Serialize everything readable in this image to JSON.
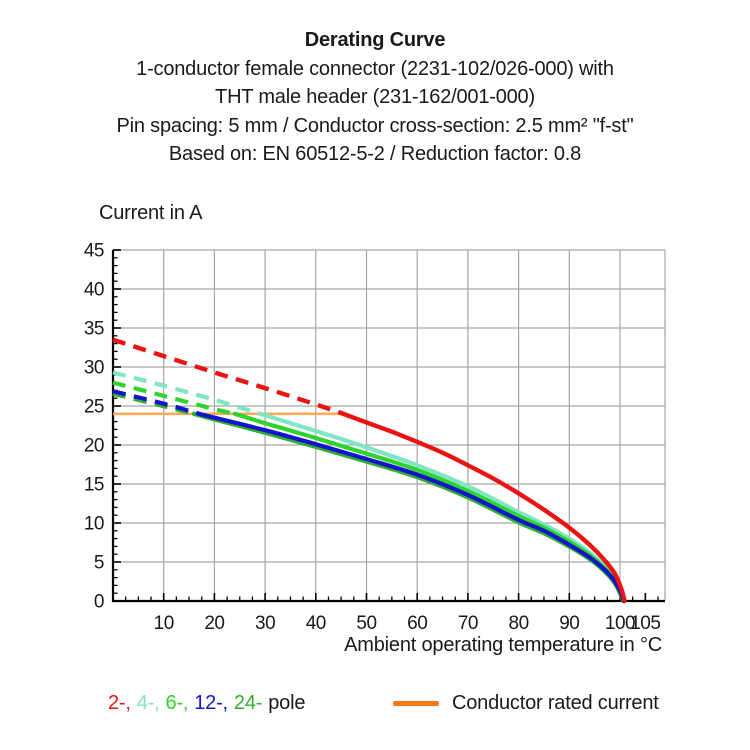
{
  "header": {
    "title": "Derating Curve",
    "line2": "1-conductor female connector (2231-102/026-000) with",
    "line3": "THT male header (231-162/001-000)",
    "line4": "Pin spacing: 5 mm / Conductor cross-section: 2.5 mm² \"f-st\"",
    "line5": "Based on: EN 60512-5-2 / Reduction factor: 0.8"
  },
  "chart_data": {
    "type": "line",
    "title": "Derating Curve",
    "ylabel": "Current in A",
    "xlabel": "Ambient operating temperature in °C",
    "xlim": [
      0,
      108.5
    ],
    "ylim": [
      0,
      45
    ],
    "x_ticks": [
      10,
      20,
      30,
      40,
      50,
      60,
      70,
      80,
      90,
      100,
      105
    ],
    "y_ticks": [
      0,
      5,
      10,
      15,
      20,
      25,
      30,
      35,
      40,
      45
    ],
    "x_minor_step": 2.5,
    "y_minor_step": 1,
    "grid": true,
    "grid_color": "#a6a6a6",
    "axis_color": "#000000",
    "text_color": "#1a1a1a",
    "note": "curves drawn dashed above the conductor rated current (24 A) and solid below it",
    "rated_current": {
      "label": "Conductor rated current",
      "value": 24,
      "x_start": 0,
      "x_end": 45,
      "line_color": "#ffab57",
      "legend_color": "#f57916"
    },
    "series": [
      {
        "name": "4-pole",
        "label": "4-",
        "color": "#80e5c5",
        "solid_from": 29,
        "width": 4.2,
        "points": [
          [
            0,
            29.3
          ],
          [
            10,
            27.6
          ],
          [
            20,
            25.8
          ],
          [
            29,
            24.0
          ],
          [
            40,
            21.8
          ],
          [
            50,
            19.7
          ],
          [
            60,
            17.4
          ],
          [
            70,
            14.7
          ],
          [
            80,
            11.4
          ],
          [
            85,
            9.8
          ],
          [
            90,
            8.0
          ],
          [
            94,
            6.2
          ],
          [
            97,
            4.4
          ],
          [
            99,
            2.8
          ],
          [
            100.2,
            1.2
          ],
          [
            100.8,
            0
          ]
        ]
      },
      {
        "name": "6-pole",
        "label": "6-",
        "color": "#2fd32f",
        "solid_from": 24,
        "width": 4.2,
        "points": [
          [
            0,
            28.0
          ],
          [
            10,
            26.3
          ],
          [
            20,
            24.6
          ],
          [
            24,
            24.0
          ],
          [
            30,
            22.8
          ],
          [
            40,
            20.9
          ],
          [
            50,
            18.9
          ],
          [
            60,
            16.8
          ],
          [
            70,
            14.1
          ],
          [
            80,
            10.9
          ],
          [
            85,
            9.4
          ],
          [
            90,
            7.6
          ],
          [
            94,
            5.9
          ],
          [
            97,
            4.2
          ],
          [
            99,
            2.6
          ],
          [
            100.2,
            1.1
          ],
          [
            100.8,
            0
          ]
        ]
      },
      {
        "name": "24-pole",
        "label": "24-",
        "color": "#2fae2f",
        "solid_from": 16,
        "width": 4.6,
        "points": [
          [
            0,
            26.6
          ],
          [
            10,
            25.0
          ],
          [
            16,
            24.0
          ],
          [
            20,
            23.3
          ],
          [
            30,
            21.6
          ],
          [
            40,
            19.8
          ],
          [
            50,
            17.9
          ],
          [
            60,
            15.9
          ],
          [
            70,
            13.3
          ],
          [
            80,
            10.1
          ],
          [
            85,
            8.7
          ],
          [
            90,
            7.0
          ],
          [
            94,
            5.4
          ],
          [
            97,
            3.8
          ],
          [
            99,
            2.3
          ],
          [
            100.1,
            0.9
          ],
          [
            100.7,
            0
          ]
        ]
      },
      {
        "name": "12-pole",
        "label": "12-",
        "color": "#1414cc",
        "solid_from": 17,
        "width": 4.2,
        "points": [
          [
            0,
            26.9
          ],
          [
            10,
            25.3
          ],
          [
            17,
            24.0
          ],
          [
            20,
            23.5
          ],
          [
            30,
            21.9
          ],
          [
            40,
            20.1
          ],
          [
            50,
            18.2
          ],
          [
            60,
            16.2
          ],
          [
            70,
            13.6
          ],
          [
            80,
            10.4
          ],
          [
            85,
            9.0
          ],
          [
            90,
            7.2
          ],
          [
            94,
            5.6
          ],
          [
            97,
            4.0
          ],
          [
            99,
            2.5
          ],
          [
            100.2,
            1.0
          ],
          [
            100.8,
            0
          ]
        ]
      },
      {
        "name": "2-pole",
        "label": "2-",
        "color": "#ec1313",
        "solid_from": 45,
        "width": 4.4,
        "points": [
          [
            0,
            33.5
          ],
          [
            10,
            31.4
          ],
          [
            20,
            29.3
          ],
          [
            30,
            27.3
          ],
          [
            40,
            25.2
          ],
          [
            45,
            24.1
          ],
          [
            50,
            22.9
          ],
          [
            55,
            21.7
          ],
          [
            60,
            20.4
          ],
          [
            65,
            19.0
          ],
          [
            70,
            17.4
          ],
          [
            75,
            15.7
          ],
          [
            80,
            13.8
          ],
          [
            85,
            11.7
          ],
          [
            90,
            9.4
          ],
          [
            94,
            7.2
          ],
          [
            97,
            5.2
          ],
          [
            99,
            3.5
          ],
          [
            100.3,
            1.5
          ],
          [
            100.9,
            0
          ]
        ]
      }
    ]
  },
  "legend": {
    "poles": [
      {
        "label": "2-,",
        "color": "#ec1313"
      },
      {
        "label": "4-,",
        "color": "#80e5c5"
      },
      {
        "label": "6-,",
        "color": "#2fd32f"
      },
      {
        "label": "12-,",
        "color": "#1414cc"
      },
      {
        "label": "24-",
        "color": "#2fae2f"
      }
    ],
    "pole_suffix": "pole",
    "rated_label": "Conductor rated current"
  }
}
